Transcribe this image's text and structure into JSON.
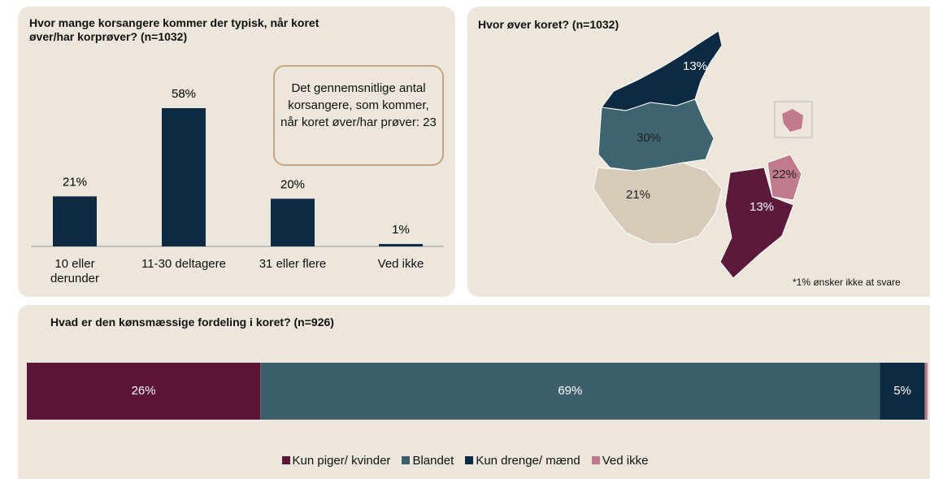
{
  "chart_data": [
    {
      "type": "bar",
      "title": "Hvor mange korsangere kommer der typisk, når koret øver/har korprøver? (n=1032)",
      "categories": [
        "10 eller derunder",
        "11-30 deltagere",
        "31 eller flere",
        "Ved ikke"
      ],
      "values": [
        21,
        58,
        20,
        1
      ],
      "value_labels": [
        "21%",
        "58%",
        "20%",
        "1%"
      ],
      "color": "#0d2a42",
      "annotation": "Det gennemsnitlige antal korsangere, som kommer, når koret øver/har prøver: 23"
    },
    {
      "type": "map",
      "title": "Hvor øver koret? (n=1032)",
      "values": [
        13,
        30,
        21,
        13,
        22
      ],
      "value_labels": [
        "13%",
        "30%",
        "21%",
        "13%",
        "22%"
      ],
      "colors": [
        "#0d2a42",
        "#3e6470",
        "#d6cab8",
        "#5c1a3a",
        "#c07a8c"
      ],
      "footnote": "*1% ønsker ikke at svare"
    },
    {
      "type": "stacked-bar",
      "title": "Hvad er den kønsmæssige fordeling i koret? (n=926)",
      "series": [
        {
          "name": "Kun piger/ kvinder",
          "color": "#5c1437",
          "values": [
            26
          ],
          "value_labels": [
            "26%"
          ]
        },
        {
          "name": "Blandet",
          "color": "#3d5f6b",
          "values": [
            69
          ],
          "value_labels": [
            "69%"
          ]
        },
        {
          "name": "Kun drenge/ mænd",
          "color": "#0d2a42",
          "values": [
            5
          ],
          "value_labels": [
            "5%"
          ]
        },
        {
          "name": "Ved ikke",
          "color": "#c07a8c",
          "values": [
            0.3
          ]
        }
      ]
    }
  ]
}
